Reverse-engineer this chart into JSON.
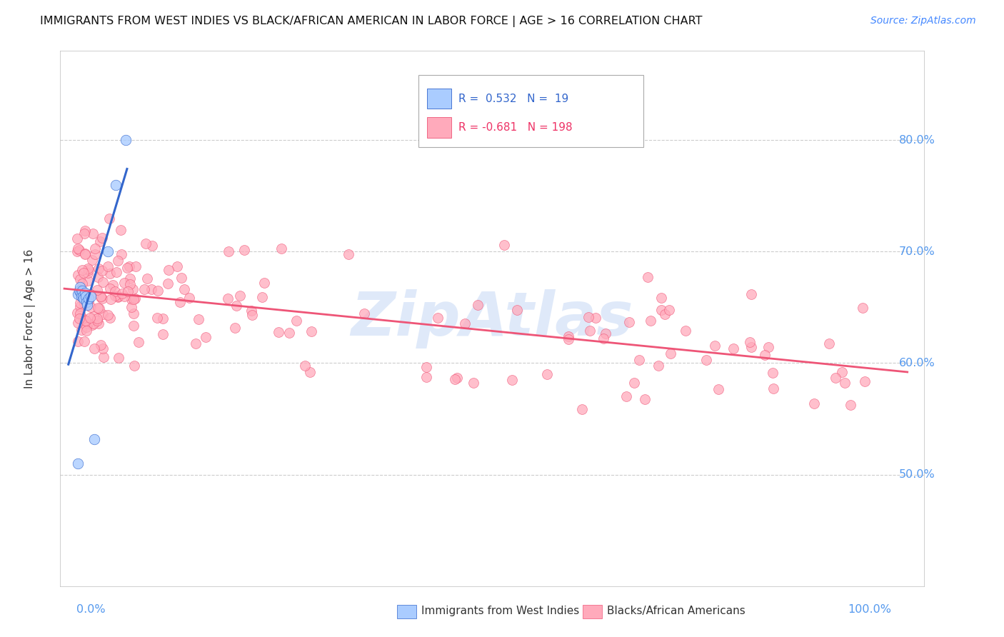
{
  "title": "IMMIGRANTS FROM WEST INDIES VS BLACK/AFRICAN AMERICAN IN LABOR FORCE | AGE > 16 CORRELATION CHART",
  "source": "Source: ZipAtlas.com",
  "ylabel": "In Labor Force | Age > 16",
  "watermark": "ZipAtlas",
  "blue_scatter_color": "#aaccff",
  "blue_line_color": "#3366cc",
  "pink_scatter_color": "#ffaabb",
  "pink_line_color": "#ee5577",
  "background": "#ffffff",
  "grid_color": "#cccccc",
  "right_label_color": "#5599ee",
  "ylim": [
    0.4,
    0.88
  ],
  "xlim": [
    -0.02,
    1.04
  ]
}
